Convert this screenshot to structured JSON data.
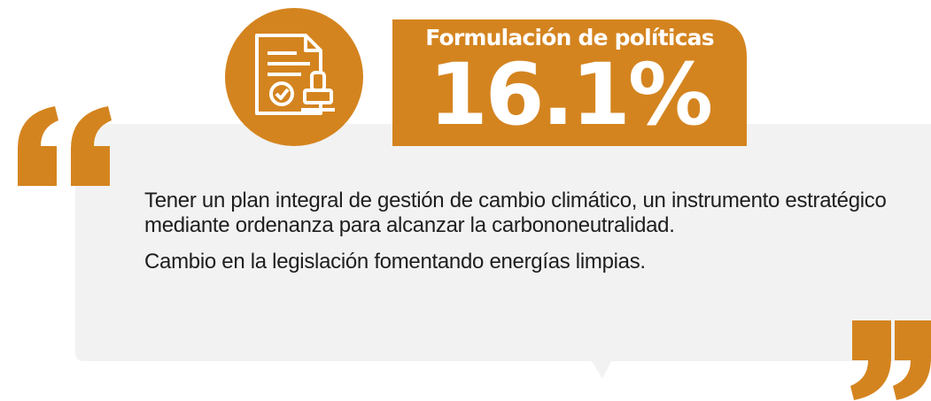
{
  "header": {
    "title": "Formulación de políticas",
    "value": "16.1%"
  },
  "quote": {
    "lines": [
      "Tener un plan integral de gestión de cambio climático, un instrumento estratégico mediante ordenanza para alcanzar la carbononeutralidad.",
      "Cambio en la legislación fomentando energías limpias."
    ]
  }
}
